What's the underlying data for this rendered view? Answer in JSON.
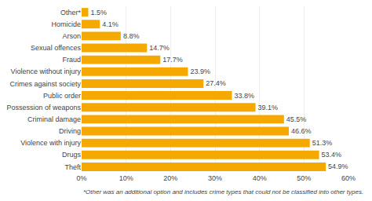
{
  "chart_data": {
    "type": "bar",
    "orientation": "horizontal",
    "categories": [
      "Theft",
      "Drugs",
      "Violence with injury",
      "Driving",
      "Criminal damage",
      "Possession of weapons",
      "Public order",
      "Crimes against society",
      "Violence without injury",
      "Fraud",
      "Sexual offences",
      "Arson",
      "Homicide",
      "Other*"
    ],
    "values": [
      54.9,
      53.4,
      51.3,
      46.6,
      45.5,
      39.1,
      33.8,
      27.4,
      23.9,
      17.7,
      14.7,
      8.8,
      4.1,
      1.5
    ],
    "value_labels": [
      "54.9%",
      "53.4%",
      "51.3%",
      "46.6%",
      "45.5%",
      "39.1%",
      "33.8%",
      "27.4%",
      "23.9%",
      "17.7%",
      "14.7%",
      "8.8%",
      "4.1%",
      "1.5%"
    ],
    "data_labels": true,
    "color": "#F5A800",
    "xlim": [
      0,
      60
    ],
    "xticks": [
      {
        "value": 0,
        "label": "0%"
      },
      {
        "value": 10,
        "label": "10%"
      },
      {
        "value": 20,
        "label": "20%"
      },
      {
        "value": 30,
        "label": "30%"
      },
      {
        "value": 40,
        "label": "40%"
      },
      {
        "value": 50,
        "label": "50%"
      },
      {
        "value": 60,
        "label": "60%"
      }
    ],
    "grid": true,
    "annotations": [
      "*Other was an additional option and includes crime types that could not be classified into other types."
    ]
  }
}
